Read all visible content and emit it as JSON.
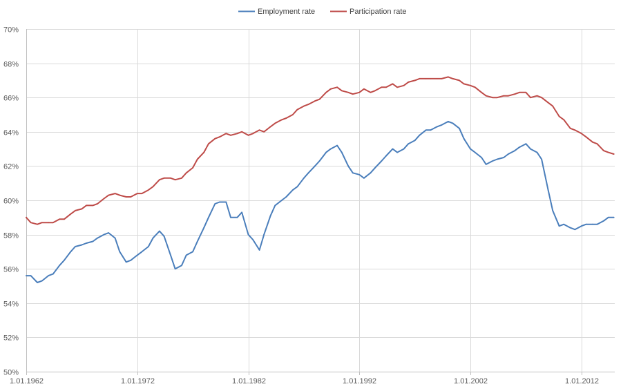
{
  "chart_data": {
    "type": "line",
    "title": "",
    "xlabel": "",
    "ylabel": "",
    "legend": "top-center",
    "grid": true,
    "x_range": [
      "1962-01-01",
      "2015-01-01"
    ],
    "ylim": [
      50,
      70
    ],
    "y_ticks": [
      {
        "value": 50,
        "label": "50%"
      },
      {
        "value": 52,
        "label": "52%"
      },
      {
        "value": 54,
        "label": "54%"
      },
      {
        "value": 56,
        "label": "56%"
      },
      {
        "value": 58,
        "label": "58%"
      },
      {
        "value": 60,
        "label": "60%"
      },
      {
        "value": 62,
        "label": "62%"
      },
      {
        "value": 64,
        "label": "64%"
      },
      {
        "value": 66,
        "label": "66%"
      },
      {
        "value": 68,
        "label": "68%"
      },
      {
        "value": 70,
        "label": "70%"
      }
    ],
    "x_ticks": [
      {
        "value": "1962-01-01",
        "label": "1.01.1962"
      },
      {
        "value": "1972-01-01",
        "label": "1.01.1972"
      },
      {
        "value": "1982-01-01",
        "label": "1.01.1982"
      },
      {
        "value": "1992-01-01",
        "label": "1.01.1992"
      },
      {
        "value": "2002-01-01",
        "label": "1.01.2002"
      },
      {
        "value": "2012-01-01",
        "label": "1.01.2012"
      }
    ],
    "series": [
      {
        "name": "Employment rate",
        "color": "#4a7ebb",
        "points": [
          [
            "1962-01-01",
            55.6
          ],
          [
            "1962-06-01",
            55.6
          ],
          [
            "1963-01-01",
            55.2
          ],
          [
            "1963-06-01",
            55.3
          ],
          [
            "1964-01-01",
            55.6
          ],
          [
            "1964-06-01",
            55.7
          ],
          [
            "1965-01-01",
            56.2
          ],
          [
            "1965-06-01",
            56.5
          ],
          [
            "1966-01-01",
            57.0
          ],
          [
            "1966-06-01",
            57.3
          ],
          [
            "1967-01-01",
            57.4
          ],
          [
            "1967-06-01",
            57.5
          ],
          [
            "1968-01-01",
            57.6
          ],
          [
            "1968-06-01",
            57.8
          ],
          [
            "1969-01-01",
            58.0
          ],
          [
            "1969-06-01",
            58.1
          ],
          [
            "1970-01-01",
            57.8
          ],
          [
            "1970-06-01",
            57.0
          ],
          [
            "1971-01-01",
            56.4
          ],
          [
            "1971-06-01",
            56.5
          ],
          [
            "1972-01-01",
            56.8
          ],
          [
            "1972-06-01",
            57.0
          ],
          [
            "1973-01-01",
            57.3
          ],
          [
            "1973-06-01",
            57.8
          ],
          [
            "1974-01-01",
            58.2
          ],
          [
            "1974-06-01",
            57.9
          ],
          [
            "1975-01-01",
            56.8
          ],
          [
            "1975-06-01",
            56.0
          ],
          [
            "1976-01-01",
            56.2
          ],
          [
            "1976-06-01",
            56.8
          ],
          [
            "1977-01-01",
            57.0
          ],
          [
            "1977-06-01",
            57.6
          ],
          [
            "1978-01-01",
            58.4
          ],
          [
            "1978-06-01",
            59.0
          ],
          [
            "1979-01-01",
            59.8
          ],
          [
            "1979-06-01",
            59.9
          ],
          [
            "1980-01-01",
            59.9
          ],
          [
            "1980-06-01",
            59.0
          ],
          [
            "1981-01-01",
            59.0
          ],
          [
            "1981-06-01",
            59.3
          ],
          [
            "1982-01-01",
            58.0
          ],
          [
            "1982-06-01",
            57.7
          ],
          [
            "1983-01-01",
            57.1
          ],
          [
            "1983-06-01",
            58.0
          ],
          [
            "1984-01-01",
            59.1
          ],
          [
            "1984-06-01",
            59.7
          ],
          [
            "1985-01-01",
            60.0
          ],
          [
            "1985-06-01",
            60.2
          ],
          [
            "1986-01-01",
            60.6
          ],
          [
            "1986-06-01",
            60.8
          ],
          [
            "1987-01-01",
            61.3
          ],
          [
            "1987-06-01",
            61.6
          ],
          [
            "1988-01-01",
            62.0
          ],
          [
            "1988-06-01",
            62.3
          ],
          [
            "1989-01-01",
            62.8
          ],
          [
            "1989-06-01",
            63.0
          ],
          [
            "1990-01-01",
            63.2
          ],
          [
            "1990-06-01",
            62.8
          ],
          [
            "1991-01-01",
            62.0
          ],
          [
            "1991-06-01",
            61.6
          ],
          [
            "1992-01-01",
            61.5
          ],
          [
            "1992-06-01",
            61.3
          ],
          [
            "1993-01-01",
            61.6
          ],
          [
            "1993-06-01",
            61.9
          ],
          [
            "1994-01-01",
            62.3
          ],
          [
            "1994-06-01",
            62.6
          ],
          [
            "1995-01-01",
            63.0
          ],
          [
            "1995-06-01",
            62.8
          ],
          [
            "1996-01-01",
            63.0
          ],
          [
            "1996-06-01",
            63.3
          ],
          [
            "1997-01-01",
            63.5
          ],
          [
            "1997-06-01",
            63.8
          ],
          [
            "1998-01-01",
            64.1
          ],
          [
            "1998-06-01",
            64.1
          ],
          [
            "1999-01-01",
            64.3
          ],
          [
            "1999-06-01",
            64.4
          ],
          [
            "2000-01-01",
            64.6
          ],
          [
            "2000-06-01",
            64.5
          ],
          [
            "2001-01-01",
            64.2
          ],
          [
            "2001-06-01",
            63.6
          ],
          [
            "2002-01-01",
            63.0
          ],
          [
            "2002-06-01",
            62.8
          ],
          [
            "2003-01-01",
            62.5
          ],
          [
            "2003-06-01",
            62.1
          ],
          [
            "2004-01-01",
            62.3
          ],
          [
            "2004-06-01",
            62.4
          ],
          [
            "2005-01-01",
            62.5
          ],
          [
            "2005-06-01",
            62.7
          ],
          [
            "2006-01-01",
            62.9
          ],
          [
            "2006-06-01",
            63.1
          ],
          [
            "2007-01-01",
            63.3
          ],
          [
            "2007-06-01",
            63.0
          ],
          [
            "2008-01-01",
            62.8
          ],
          [
            "2008-06-01",
            62.4
          ],
          [
            "2009-01-01",
            60.6
          ],
          [
            "2009-06-01",
            59.4
          ],
          [
            "2010-01-01",
            58.5
          ],
          [
            "2010-06-01",
            58.6
          ],
          [
            "2011-01-01",
            58.4
          ],
          [
            "2011-06-01",
            58.3
          ],
          [
            "2012-01-01",
            58.5
          ],
          [
            "2012-06-01",
            58.6
          ],
          [
            "2013-01-01",
            58.6
          ],
          [
            "2013-06-01",
            58.6
          ],
          [
            "2014-01-01",
            58.8
          ],
          [
            "2014-06-01",
            59.0
          ],
          [
            "2014-12-01",
            59.0
          ]
        ]
      },
      {
        "name": "Participation rate",
        "color": "#be4b48",
        "points": [
          [
            "1962-01-01",
            59.0
          ],
          [
            "1962-06-01",
            58.7
          ],
          [
            "1963-01-01",
            58.6
          ],
          [
            "1963-06-01",
            58.7
          ],
          [
            "1964-01-01",
            58.7
          ],
          [
            "1964-06-01",
            58.7
          ],
          [
            "1965-01-01",
            58.9
          ],
          [
            "1965-06-01",
            58.9
          ],
          [
            "1966-01-01",
            59.2
          ],
          [
            "1966-06-01",
            59.4
          ],
          [
            "1967-01-01",
            59.5
          ],
          [
            "1967-06-01",
            59.7
          ],
          [
            "1968-01-01",
            59.7
          ],
          [
            "1968-06-01",
            59.8
          ],
          [
            "1969-01-01",
            60.1
          ],
          [
            "1969-06-01",
            60.3
          ],
          [
            "1970-01-01",
            60.4
          ],
          [
            "1970-06-01",
            60.3
          ],
          [
            "1971-01-01",
            60.2
          ],
          [
            "1971-06-01",
            60.2
          ],
          [
            "1972-01-01",
            60.4
          ],
          [
            "1972-06-01",
            60.4
          ],
          [
            "1973-01-01",
            60.6
          ],
          [
            "1973-06-01",
            60.8
          ],
          [
            "1974-01-01",
            61.2
          ],
          [
            "1974-06-01",
            61.3
          ],
          [
            "1975-01-01",
            61.3
          ],
          [
            "1975-06-01",
            61.2
          ],
          [
            "1976-01-01",
            61.3
          ],
          [
            "1976-06-01",
            61.6
          ],
          [
            "1977-01-01",
            61.9
          ],
          [
            "1977-06-01",
            62.4
          ],
          [
            "1978-01-01",
            62.8
          ],
          [
            "1978-06-01",
            63.3
          ],
          [
            "1979-01-01",
            63.6
          ],
          [
            "1979-06-01",
            63.7
          ],
          [
            "1980-01-01",
            63.9
          ],
          [
            "1980-06-01",
            63.8
          ],
          [
            "1981-01-01",
            63.9
          ],
          [
            "1981-06-01",
            64.0
          ],
          [
            "1982-01-01",
            63.8
          ],
          [
            "1982-06-01",
            63.9
          ],
          [
            "1983-01-01",
            64.1
          ],
          [
            "1983-06-01",
            64.0
          ],
          [
            "1984-01-01",
            64.3
          ],
          [
            "1984-06-01",
            64.5
          ],
          [
            "1985-01-01",
            64.7
          ],
          [
            "1985-06-01",
            64.8
          ],
          [
            "1986-01-01",
            65.0
          ],
          [
            "1986-06-01",
            65.3
          ],
          [
            "1987-01-01",
            65.5
          ],
          [
            "1987-06-01",
            65.6
          ],
          [
            "1988-01-01",
            65.8
          ],
          [
            "1988-06-01",
            65.9
          ],
          [
            "1989-01-01",
            66.3
          ],
          [
            "1989-06-01",
            66.5
          ],
          [
            "1990-01-01",
            66.6
          ],
          [
            "1990-06-01",
            66.4
          ],
          [
            "1991-01-01",
            66.3
          ],
          [
            "1991-06-01",
            66.2
          ],
          [
            "1992-01-01",
            66.3
          ],
          [
            "1992-06-01",
            66.5
          ],
          [
            "1993-01-01",
            66.3
          ],
          [
            "1993-06-01",
            66.4
          ],
          [
            "1994-01-01",
            66.6
          ],
          [
            "1994-06-01",
            66.6
          ],
          [
            "1995-01-01",
            66.8
          ],
          [
            "1995-06-01",
            66.6
          ],
          [
            "1996-01-01",
            66.7
          ],
          [
            "1996-06-01",
            66.9
          ],
          [
            "1997-01-01",
            67.0
          ],
          [
            "1997-06-01",
            67.1
          ],
          [
            "1998-01-01",
            67.1
          ],
          [
            "1998-06-01",
            67.1
          ],
          [
            "1999-01-01",
            67.1
          ],
          [
            "1999-06-01",
            67.1
          ],
          [
            "2000-01-01",
            67.2
          ],
          [
            "2000-06-01",
            67.1
          ],
          [
            "2001-01-01",
            67.0
          ],
          [
            "2001-06-01",
            66.8
          ],
          [
            "2002-01-01",
            66.7
          ],
          [
            "2002-06-01",
            66.6
          ],
          [
            "2003-01-01",
            66.3
          ],
          [
            "2003-06-01",
            66.1
          ],
          [
            "2004-01-01",
            66.0
          ],
          [
            "2004-06-01",
            66.0
          ],
          [
            "2005-01-01",
            66.1
          ],
          [
            "2005-06-01",
            66.1
          ],
          [
            "2006-01-01",
            66.2
          ],
          [
            "2006-06-01",
            66.3
          ],
          [
            "2007-01-01",
            66.3
          ],
          [
            "2007-06-01",
            66.0
          ],
          [
            "2008-01-01",
            66.1
          ],
          [
            "2008-06-01",
            66.0
          ],
          [
            "2009-01-01",
            65.7
          ],
          [
            "2009-06-01",
            65.5
          ],
          [
            "2010-01-01",
            64.9
          ],
          [
            "2010-06-01",
            64.7
          ],
          [
            "2011-01-01",
            64.2
          ],
          [
            "2011-06-01",
            64.1
          ],
          [
            "2012-01-01",
            63.9
          ],
          [
            "2012-06-01",
            63.7
          ],
          [
            "2013-01-01",
            63.4
          ],
          [
            "2013-06-01",
            63.3
          ],
          [
            "2014-01-01",
            62.9
          ],
          [
            "2014-06-01",
            62.8
          ],
          [
            "2014-12-01",
            62.7
          ]
        ]
      }
    ]
  }
}
